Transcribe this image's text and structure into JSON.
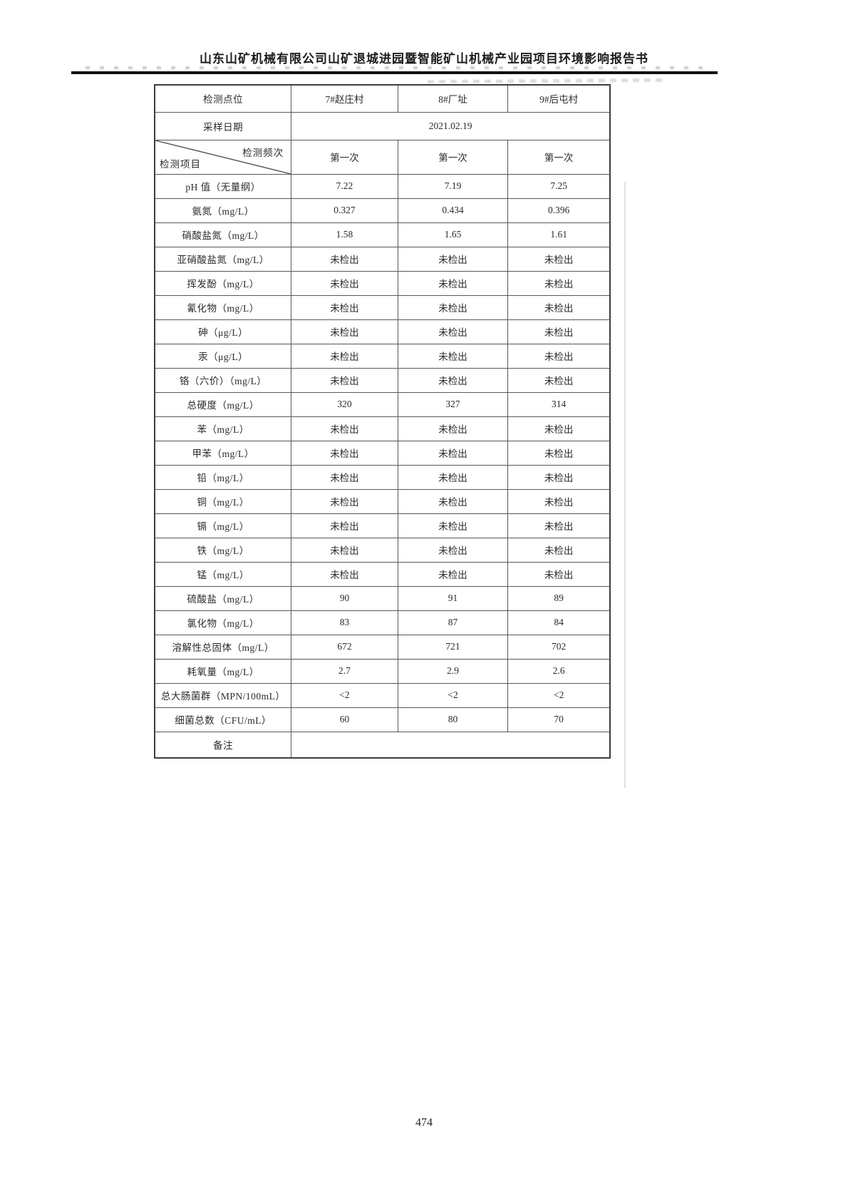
{
  "page": {
    "header_title": "山东山矿机械有限公司山矿退城进园暨智能矿山机械产业园项目环境影响报告书",
    "page_number": "474"
  },
  "table": {
    "point_row_label": "检测点位",
    "points": [
      "7#赵庄村",
      "8#厂址",
      "9#后屯村"
    ],
    "date_row_label": "采样日期",
    "sampling_date": "2021.02.19",
    "corner": {
      "top_right": "检测频次",
      "bottom_left": "检测项目"
    },
    "frequency": [
      "第一次",
      "第一次",
      "第一次"
    ],
    "rows": [
      {
        "item": "pH 值（无量纲）",
        "values": [
          "7.22",
          "7.19",
          "7.25"
        ]
      },
      {
        "item": "氨氮（mg/L）",
        "values": [
          "0.327",
          "0.434",
          "0.396"
        ]
      },
      {
        "item": "硝酸盐氮（mg/L）",
        "values": [
          "1.58",
          "1.65",
          "1.61"
        ]
      },
      {
        "item": "亚硝酸盐氮（mg/L）",
        "values": [
          "未检出",
          "未检出",
          "未检出"
        ]
      },
      {
        "item": "挥发酚（mg/L）",
        "values": [
          "未检出",
          "未检出",
          "未检出"
        ]
      },
      {
        "item": "氰化物（mg/L）",
        "values": [
          "未检出",
          "未检出",
          "未检出"
        ]
      },
      {
        "item": "砷（μg/L）",
        "values": [
          "未检出",
          "未检出",
          "未检出"
        ]
      },
      {
        "item": "汞（μg/L）",
        "values": [
          "未检出",
          "未检出",
          "未检出"
        ]
      },
      {
        "item": "铬（六价）（mg/L）",
        "values": [
          "未检出",
          "未检出",
          "未检出"
        ]
      },
      {
        "item": "总硬度（mg/L）",
        "values": [
          "320",
          "327",
          "314"
        ]
      },
      {
        "item": "苯（mg/L）",
        "values": [
          "未检出",
          "未检出",
          "未检出"
        ]
      },
      {
        "item": "甲苯（mg/L）",
        "values": [
          "未检出",
          "未检出",
          "未检出"
        ]
      },
      {
        "item": "铅（mg/L）",
        "values": [
          "未检出",
          "未检出",
          "未检出"
        ]
      },
      {
        "item": "铜（mg/L）",
        "values": [
          "未检出",
          "未检出",
          "未检出"
        ]
      },
      {
        "item": "镉（mg/L）",
        "values": [
          "未检出",
          "未检出",
          "未检出"
        ]
      },
      {
        "item": "铁（mg/L）",
        "values": [
          "未检出",
          "未检出",
          "未检出"
        ]
      },
      {
        "item": "锰（mg/L）",
        "values": [
          "未检出",
          "未检出",
          "未检出"
        ]
      },
      {
        "item": "硫酸盐（mg/L）",
        "values": [
          "90",
          "91",
          "89"
        ]
      },
      {
        "item": "氯化物（mg/L）",
        "values": [
          "83",
          "87",
          "84"
        ]
      },
      {
        "item": "溶解性总固体（mg/L）",
        "values": [
          "672",
          "721",
          "702"
        ]
      },
      {
        "item": "耗氧量（mg/L）",
        "values": [
          "2.7",
          "2.9",
          "2.6"
        ]
      },
      {
        "item": "总大肠菌群（MPN/100mL）",
        "values": [
          "<2",
          "<2",
          "<2"
        ]
      },
      {
        "item": "细菌总数（CFU/mL）",
        "values": [
          "60",
          "80",
          "70"
        ]
      }
    ],
    "remark_label": "备注",
    "remark_value": ""
  }
}
